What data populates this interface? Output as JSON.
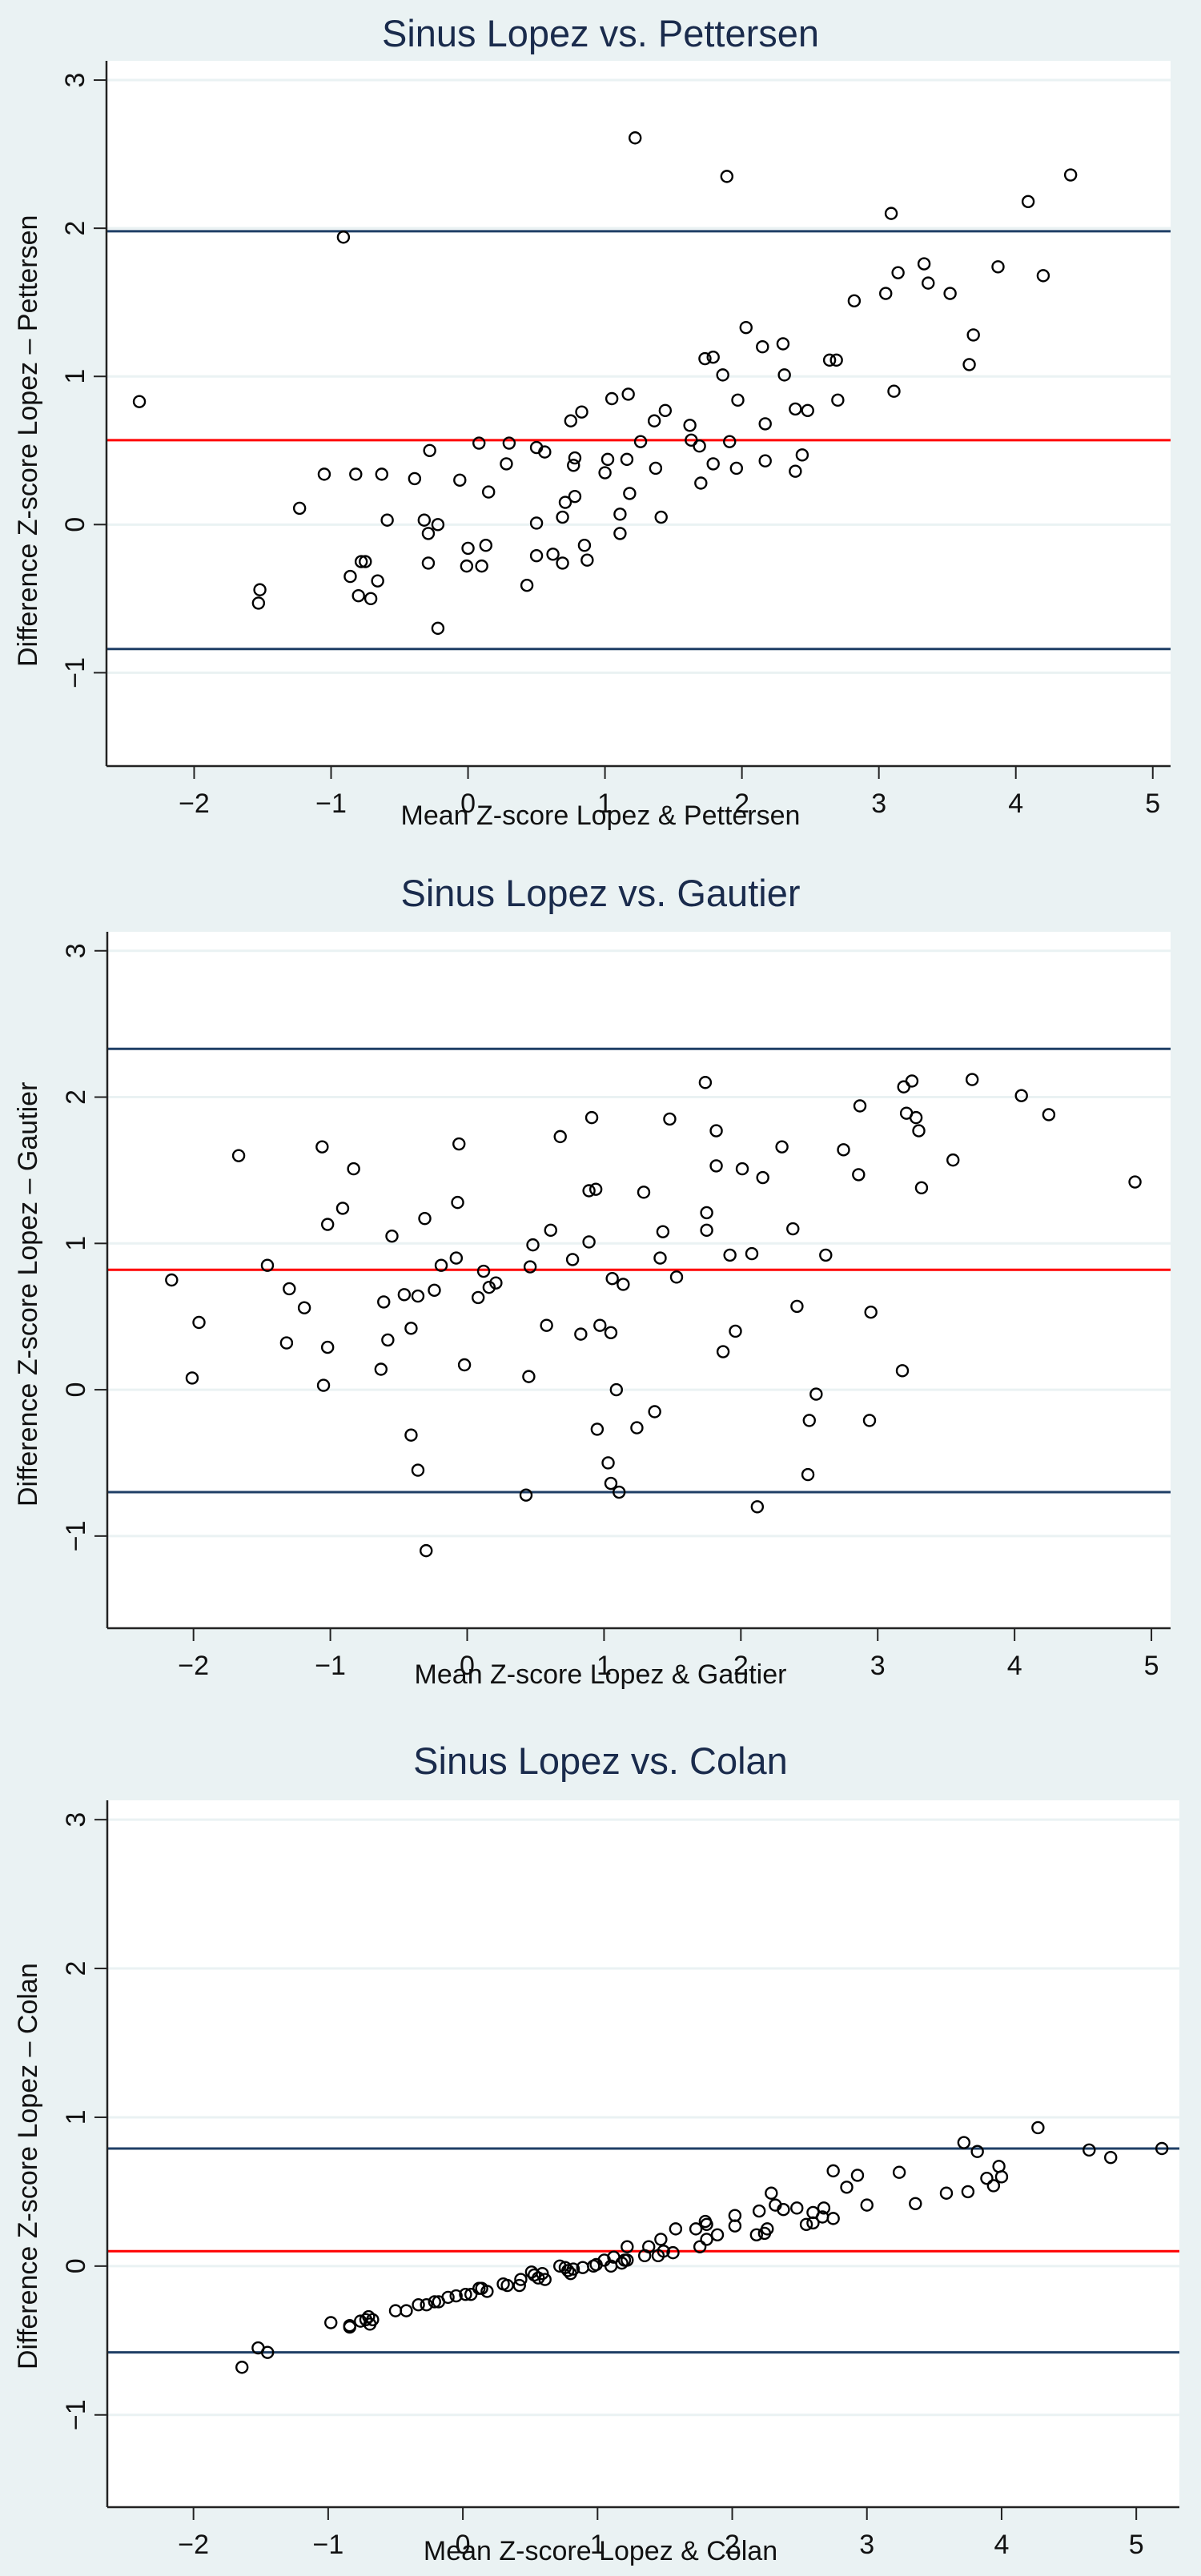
{
  "chart_data": [
    {
      "type": "scatter",
      "title": "Sinus Lopez vs. Pettersen",
      "xlabel": "Mean Z-score Lopez & Pettersen",
      "ylabel": "Difference Z-score Lopez – Pettersen",
      "xlim": [
        -2.64,
        5.13
      ],
      "ylim": [
        -1.63,
        3.13
      ],
      "xticks": [
        -2,
        -1,
        0,
        1,
        2,
        3,
        4,
        5
      ],
      "yticks": [
        -1,
        0,
        1,
        2,
        3
      ],
      "grid": true,
      "reference_lines": {
        "mean_difference": 0.57,
        "upper_limit": 1.98,
        "lower_limit": -0.84
      },
      "reference_line_colors": {
        "mean": "#ff0000",
        "limits": "#1f3f66"
      },
      "marker": "hollow-circle",
      "points": [
        [
          -2.4,
          0.83
        ],
        [
          -0.91,
          1.94
        ],
        [
          1.22,
          2.61
        ],
        [
          1.89,
          2.35
        ],
        [
          4.4,
          2.36
        ],
        [
          4.09,
          2.18
        ],
        [
          3.09,
          2.1
        ],
        [
          3.33,
          1.76
        ],
        [
          3.14,
          1.7
        ],
        [
          3.36,
          1.63
        ],
        [
          3.52,
          1.56
        ],
        [
          3.05,
          1.56
        ],
        [
          2.82,
          1.51
        ],
        [
          3.87,
          1.74
        ],
        [
          4.2,
          1.68
        ],
        [
          3.69,
          1.28
        ],
        [
          3.66,
          1.08
        ],
        [
          3.11,
          0.9
        ],
        [
          2.7,
          0.84
        ],
        [
          2.64,
          1.11
        ],
        [
          2.69,
          1.11
        ],
        [
          2.03,
          1.33
        ],
        [
          2.15,
          1.2
        ],
        [
          2.3,
          1.22
        ],
        [
          2.31,
          1.01
        ],
        [
          1.73,
          1.12
        ],
        [
          1.79,
          1.13
        ],
        [
          1.86,
          1.01
        ],
        [
          1.97,
          0.84
        ],
        [
          2.17,
          0.68
        ],
        [
          2.39,
          0.78
        ],
        [
          2.48,
          0.77
        ],
        [
          1.05,
          0.85
        ],
        [
          1.17,
          0.88
        ],
        [
          0.83,
          0.76
        ],
        [
          0.75,
          0.7
        ],
        [
          1.44,
          0.77
        ],
        [
          1.36,
          0.7
        ],
        [
          1.62,
          0.67
        ],
        [
          1.26,
          0.56
        ],
        [
          1.63,
          0.57
        ],
        [
          1.91,
          0.56
        ],
        [
          1.69,
          0.53
        ],
        [
          2.44,
          0.47
        ],
        [
          2.17,
          0.43
        ],
        [
          1.79,
          0.41
        ],
        [
          1.96,
          0.38
        ],
        [
          2.39,
          0.36
        ],
        [
          1.7,
          0.28
        ],
        [
          1.37,
          0.38
        ],
        [
          1.16,
          0.44
        ],
        [
          1.02,
          0.44
        ],
        [
          1.0,
          0.35
        ],
        [
          1.18,
          0.21
        ],
        [
          1.11,
          0.07
        ],
        [
          1.11,
          -0.06
        ],
        [
          1.41,
          0.05
        ],
        [
          0.78,
          0.45
        ],
        [
          0.77,
          0.4
        ],
        [
          0.78,
          0.19
        ],
        [
          0.71,
          0.15
        ],
        [
          0.69,
          0.05
        ],
        [
          0.85,
          -0.14
        ],
        [
          0.87,
          -0.24
        ],
        [
          0.69,
          -0.26
        ],
        [
          0.62,
          -0.2
        ],
        [
          0.5,
          -0.21
        ],
        [
          0.5,
          0.01
        ],
        [
          0.5,
          0.52
        ],
        [
          0.56,
          0.49
        ],
        [
          0.3,
          0.55
        ],
        [
          0.28,
          0.41
        ],
        [
          0.08,
          0.55
        ],
        [
          0.15,
          0.22
        ],
        [
          0.13,
          -0.14
        ],
        [
          0.0,
          -0.16
        ],
        [
          -0.01,
          -0.28
        ],
        [
          0.1,
          -0.28
        ],
        [
          0.43,
          -0.41
        ],
        [
          -0.06,
          0.3
        ],
        [
          -0.28,
          0.5
        ],
        [
          -0.39,
          0.31
        ],
        [
          -0.32,
          0.03
        ],
        [
          -0.22,
          0.0
        ],
        [
          -0.29,
          -0.06
        ],
        [
          -0.29,
          -0.26
        ],
        [
          -0.22,
          -0.7
        ],
        [
          -0.59,
          0.03
        ],
        [
          -0.63,
          0.34
        ],
        [
          -0.82,
          0.34
        ],
        [
          -1.05,
          0.34
        ],
        [
          -1.23,
          0.11
        ],
        [
          -0.78,
          -0.25
        ],
        [
          -0.75,
          -0.25
        ],
        [
          -0.86,
          -0.35
        ],
        [
          -0.66,
          -0.38
        ],
        [
          -0.8,
          -0.48
        ],
        [
          -0.71,
          -0.5
        ],
        [
          -1.52,
          -0.44
        ],
        [
          -1.53,
          -0.53
        ]
      ]
    },
    {
      "type": "scatter",
      "title": "Sinus Lopez vs. Gautier",
      "xlabel": "Mean Z-score Lopez & Gautier",
      "ylabel": "Difference Z-score Lopez – Gautier",
      "xlim": [
        -2.63,
        5.14
      ],
      "ylim": [
        -1.63,
        3.13
      ],
      "xticks": [
        -2,
        -1,
        0,
        1,
        2,
        3,
        4,
        5
      ],
      "yticks": [
        -1,
        0,
        1,
        2,
        3
      ],
      "grid": true,
      "reference_lines": {
        "mean_difference": 0.82,
        "upper_limit": 2.33,
        "lower_limit": -0.7
      },
      "reference_line_colors": {
        "mean": "#ff0000",
        "limits": "#1f3f66"
      },
      "marker": "hollow-circle",
      "points": [
        [
          -2.16,
          0.75
        ],
        [
          -1.96,
          0.46
        ],
        [
          -2.01,
          0.08
        ],
        [
          -1.67,
          1.6
        ],
        [
          -1.46,
          0.85
        ],
        [
          -1.3,
          0.69
        ],
        [
          -1.19,
          0.56
        ],
        [
          -1.32,
          0.32
        ],
        [
          -1.06,
          1.66
        ],
        [
          -1.02,
          1.13
        ],
        [
          -1.02,
          0.29
        ],
        [
          -1.05,
          0.03
        ],
        [
          -0.91,
          1.24
        ],
        [
          -0.83,
          1.51
        ],
        [
          -0.55,
          1.05
        ],
        [
          -0.61,
          0.6
        ],
        [
          -0.58,
          0.34
        ],
        [
          -0.63,
          0.14
        ],
        [
          -0.46,
          0.65
        ],
        [
          -0.36,
          0.64
        ],
        [
          -0.41,
          0.42
        ],
        [
          -0.41,
          -0.31
        ],
        [
          -0.36,
          -0.55
        ],
        [
          -0.3,
          -1.1
        ],
        [
          -0.31,
          1.17
        ],
        [
          -0.24,
          0.68
        ],
        [
          -0.19,
          0.85
        ],
        [
          -0.08,
          0.9
        ],
        [
          -0.07,
          1.28
        ],
        [
          -0.06,
          1.68
        ],
        [
          -0.02,
          0.17
        ],
        [
          0.08,
          0.63
        ],
        [
          0.12,
          0.81
        ],
        [
          0.16,
          0.7
        ],
        [
          0.21,
          0.73
        ],
        [
          0.45,
          0.09
        ],
        [
          0.46,
          0.84
        ],
        [
          0.48,
          0.99
        ],
        [
          0.43,
          -0.72
        ],
        [
          0.58,
          0.44
        ],
        [
          0.61,
          1.09
        ],
        [
          0.68,
          1.73
        ],
        [
          0.77,
          0.89
        ],
        [
          0.83,
          0.38
        ],
        [
          0.89,
          1.01
        ],
        [
          0.91,
          1.86
        ],
        [
          0.89,
          1.36
        ],
        [
          0.94,
          1.37
        ],
        [
          0.97,
          0.44
        ],
        [
          0.95,
          -0.27
        ],
        [
          1.03,
          -0.5
        ],
        [
          1.05,
          -0.64
        ],
        [
          1.05,
          0.39
        ],
        [
          1.06,
          0.76
        ],
        [
          1.09,
          0.0
        ],
        [
          1.11,
          -0.7
        ],
        [
          1.14,
          0.72
        ],
        [
          1.24,
          -0.26
        ],
        [
          1.29,
          1.35
        ],
        [
          1.37,
          -0.15
        ],
        [
          1.41,
          0.9
        ],
        [
          1.43,
          1.08
        ],
        [
          1.48,
          1.85
        ],
        [
          1.53,
          0.77
        ],
        [
          1.74,
          2.1
        ],
        [
          1.75,
          1.21
        ],
        [
          1.75,
          1.09
        ],
        [
          1.82,
          1.77
        ],
        [
          1.82,
          1.53
        ],
        [
          1.87,
          0.26
        ],
        [
          1.92,
          0.92
        ],
        [
          1.96,
          0.4
        ],
        [
          2.01,
          1.51
        ],
        [
          2.08,
          0.93
        ],
        [
          2.12,
          -0.8
        ],
        [
          2.16,
          1.45
        ],
        [
          2.3,
          1.66
        ],
        [
          2.38,
          1.1
        ],
        [
          2.41,
          0.57
        ],
        [
          2.49,
          -0.58
        ],
        [
          2.5,
          -0.21
        ],
        [
          2.55,
          -0.03
        ],
        [
          2.62,
          0.92
        ],
        [
          2.75,
          1.64
        ],
        [
          2.86,
          1.47
        ],
        [
          2.87,
          1.94
        ],
        [
          2.94,
          -0.21
        ],
        [
          2.95,
          0.53
        ],
        [
          3.18,
          0.13
        ],
        [
          3.19,
          2.07
        ],
        [
          3.21,
          1.89
        ],
        [
          3.25,
          2.11
        ],
        [
          3.28,
          1.86
        ],
        [
          3.3,
          1.77
        ],
        [
          3.32,
          1.38
        ],
        [
          3.55,
          1.57
        ],
        [
          3.69,
          2.12
        ],
        [
          4.05,
          2.01
        ],
        [
          4.25,
          1.88
        ],
        [
          4.88,
          1.42
        ]
      ]
    },
    {
      "type": "scatter",
      "title": "Sinus Lopez vs. Colan",
      "xlabel": "Mean Z-score Lopez & Colan",
      "ylabel": "Difference Z-score Lopez – Colan",
      "xlim": [
        -2.64,
        5.32
      ],
      "ylim": [
        -1.62,
        3.13
      ],
      "xticks": [
        -2,
        -1,
        0,
        1,
        2,
        3,
        4,
        5
      ],
      "yticks": [
        -1,
        0,
        1,
        2,
        3
      ],
      "grid": true,
      "reference_lines": {
        "mean_difference": 0.1,
        "upper_limit": 0.79,
        "lower_limit": -0.58
      },
      "reference_line_colors": {
        "mean": "#ff0000",
        "limits": "#1f3f66"
      },
      "marker": "hollow-circle",
      "points": [
        [
          -1.64,
          -0.68
        ],
        [
          -1.52,
          -0.55
        ],
        [
          -1.45,
          -0.58
        ],
        [
          -0.98,
          -0.38
        ],
        [
          -0.84,
          -0.4
        ],
        [
          -0.84,
          -0.41
        ],
        [
          -0.76,
          -0.37
        ],
        [
          -0.72,
          -0.36
        ],
        [
          -0.7,
          -0.34
        ],
        [
          -0.69,
          -0.39
        ],
        [
          -0.67,
          -0.36
        ],
        [
          -0.5,
          -0.3
        ],
        [
          -0.42,
          -0.3
        ],
        [
          -0.33,
          -0.26
        ],
        [
          -0.27,
          -0.26
        ],
        [
          -0.21,
          -0.24
        ],
        [
          -0.18,
          -0.24
        ],
        [
          -0.11,
          -0.21
        ],
        [
          -0.05,
          -0.2
        ],
        [
          0.02,
          -0.19
        ],
        [
          0.06,
          -0.19
        ],
        [
          0.12,
          -0.15
        ],
        [
          0.14,
          -0.15
        ],
        [
          0.18,
          -0.17
        ],
        [
          0.3,
          -0.12
        ],
        [
          0.33,
          -0.13
        ],
        [
          0.42,
          -0.13
        ],
        [
          0.43,
          -0.09
        ],
        [
          0.51,
          -0.04
        ],
        [
          0.53,
          -0.06
        ],
        [
          0.56,
          -0.08
        ],
        [
          0.59,
          -0.05
        ],
        [
          0.61,
          -0.09
        ],
        [
          0.72,
          0.0
        ],
        [
          0.76,
          -0.01
        ],
        [
          0.78,
          -0.03
        ],
        [
          0.8,
          -0.05
        ],
        [
          0.82,
          -0.02
        ],
        [
          0.89,
          -0.01
        ],
        [
          0.97,
          0.0
        ],
        [
          0.99,
          0.01
        ],
        [
          1.05,
          0.04
        ],
        [
          1.1,
          0.0
        ],
        [
          1.12,
          0.06
        ],
        [
          1.18,
          0.02
        ],
        [
          1.2,
          0.04
        ],
        [
          1.22,
          0.13
        ],
        [
          1.22,
          0.04
        ],
        [
          1.35,
          0.07
        ],
        [
          1.38,
          0.13
        ],
        [
          1.45,
          0.07
        ],
        [
          1.47,
          0.18
        ],
        [
          1.49,
          0.1
        ],
        [
          1.56,
          0.09
        ],
        [
          1.58,
          0.25
        ],
        [
          1.73,
          0.25
        ],
        [
          1.76,
          0.13
        ],
        [
          1.8,
          0.3
        ],
        [
          1.81,
          0.28
        ],
        [
          1.81,
          0.18
        ],
        [
          1.89,
          0.21
        ],
        [
          2.02,
          0.27
        ],
        [
          2.02,
          0.34
        ],
        [
          2.18,
          0.21
        ],
        [
          2.2,
          0.37
        ],
        [
          2.24,
          0.22
        ],
        [
          2.26,
          0.25
        ],
        [
          2.29,
          0.49
        ],
        [
          2.32,
          0.41
        ],
        [
          2.38,
          0.38
        ],
        [
          2.48,
          0.39
        ],
        [
          2.55,
          0.28
        ],
        [
          2.6,
          0.36
        ],
        [
          2.6,
          0.29
        ],
        [
          2.67,
          0.33
        ],
        [
          2.68,
          0.39
        ],
        [
          2.75,
          0.64
        ],
        [
          2.75,
          0.32
        ],
        [
          2.85,
          0.53
        ],
        [
          2.93,
          0.61
        ],
        [
          3.0,
          0.41
        ],
        [
          3.24,
          0.63
        ],
        [
          3.36,
          0.42
        ],
        [
          3.59,
          0.49
        ],
        [
          3.72,
          0.83
        ],
        [
          3.75,
          0.5
        ],
        [
          3.82,
          0.77
        ],
        [
          3.89,
          0.59
        ],
        [
          3.94,
          0.54
        ],
        [
          3.98,
          0.67
        ],
        [
          4.0,
          0.6
        ],
        [
          4.27,
          0.93
        ],
        [
          4.65,
          0.78
        ],
        [
          4.81,
          0.73
        ],
        [
          5.19,
          0.79
        ]
      ]
    }
  ]
}
